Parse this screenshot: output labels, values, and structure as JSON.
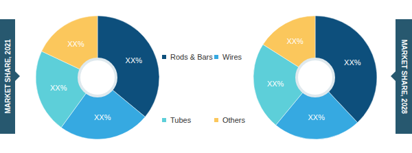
{
  "chart_data": [
    {
      "type": "pie",
      "title": "MARKET SHARE, 2021",
      "categories": [
        "Rods & Bars",
        "Wires",
        "Tubes",
        "Others"
      ],
      "values": [
        36,
        24,
        22,
        18
      ],
      "value_labels": [
        "XX%",
        "XX%",
        "XX%",
        "XX%"
      ],
      "colors": [
        "#0d4f7c",
        "#36a9e1",
        "#5dcfd9",
        "#fbc75c"
      ],
      "data_labels": true
    },
    {
      "type": "pie",
      "title": "MARKET SHARE, 2028",
      "categories": [
        "Rods & Bars",
        "Wires",
        "Tubes",
        "Others"
      ],
      "values": [
        38,
        23,
        23,
        16
      ],
      "value_labels": [
        "XX%",
        "XX%",
        "XX%",
        "XX%"
      ],
      "colors": [
        "#0d4f7c",
        "#36a9e1",
        "#5dcfd9",
        "#fbc75c"
      ],
      "data_labels": true
    }
  ]
}
